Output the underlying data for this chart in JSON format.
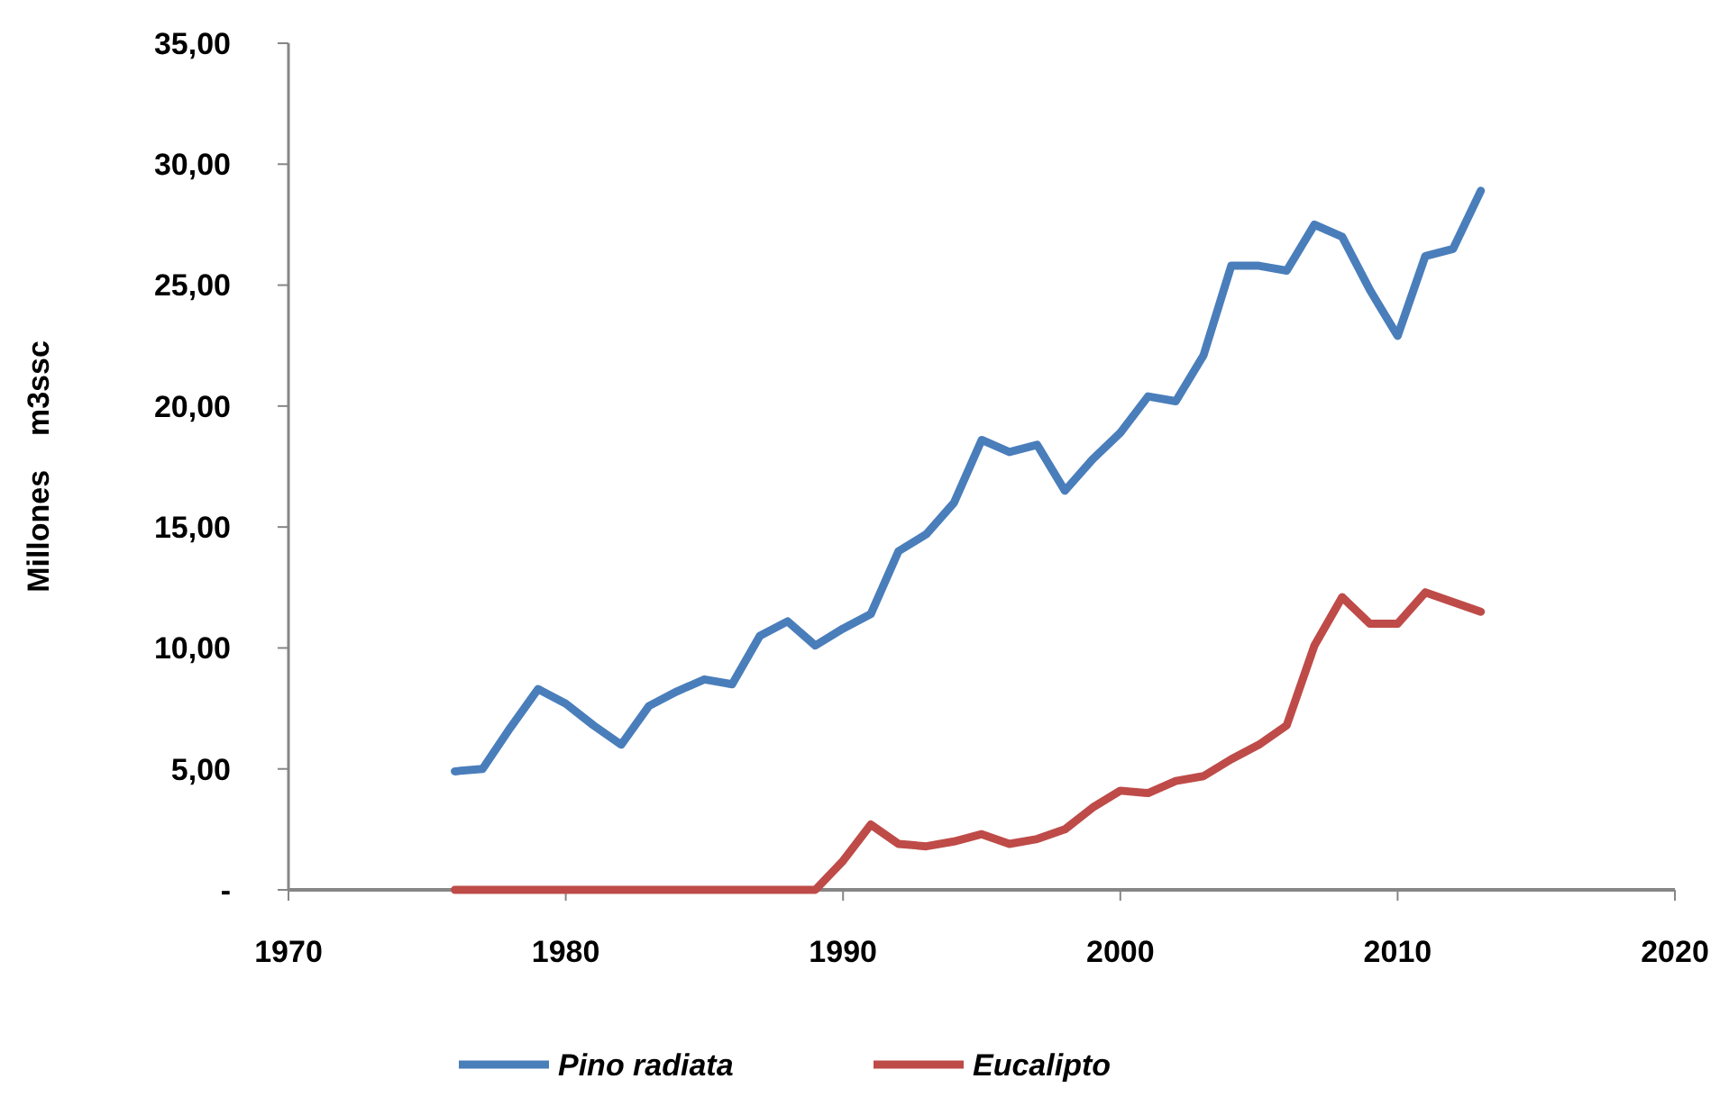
{
  "chart_data": {
    "type": "line",
    "ylabel": "Millones    m3ssc",
    "x": [
      1976,
      1977,
      1978,
      1979,
      1980,
      1981,
      1982,
      1983,
      1984,
      1985,
      1986,
      1987,
      1988,
      1989,
      1990,
      1991,
      1992,
      1993,
      1994,
      1995,
      1996,
      1997,
      1998,
      1999,
      2000,
      2001,
      2002,
      2003,
      2004,
      2005,
      2006,
      2007,
      2008,
      2009,
      2010,
      2011,
      2012,
      2013
    ],
    "series": [
      {
        "name": "Pino radiata",
        "color": "#4a7ebb",
        "values": [
          4.9,
          5.0,
          6.7,
          8.3,
          7.7,
          6.8,
          6.0,
          7.6,
          8.2,
          8.7,
          8.5,
          10.5,
          11.1,
          10.1,
          10.8,
          11.4,
          14.0,
          14.7,
          16.0,
          18.6,
          18.1,
          18.4,
          16.5,
          17.8,
          18.9,
          20.4,
          20.2,
          22.1,
          25.8,
          25.8,
          25.6,
          27.5,
          27.0,
          24.8,
          22.9,
          26.2,
          26.5,
          28.9
        ]
      },
      {
        "name": "Eucalipto",
        "color": "#be4b48",
        "values": [
          0,
          0,
          0,
          0,
          0,
          0,
          0,
          0,
          0,
          0,
          0,
          0,
          0,
          0,
          1.2,
          2.7,
          1.9,
          1.8,
          2.0,
          2.3,
          1.9,
          2.1,
          2.5,
          3.4,
          4.1,
          4.0,
          4.5,
          4.7,
          5.4,
          6.0,
          6.8,
          10.1,
          12.1,
          11.0,
          11.0,
          12.3,
          11.9,
          11.5
        ]
      }
    ],
    "xlim": [
      1970,
      2020
    ],
    "xticks": [
      1970,
      1980,
      1990,
      2000,
      2010,
      2020
    ],
    "ylim": [
      0,
      35
    ],
    "yticks": [
      {
        "value": 0,
        "label": "-"
      },
      {
        "value": 5,
        "label": "5,00"
      },
      {
        "value": 10,
        "label": "10,00"
      },
      {
        "value": 15,
        "label": "15,00"
      },
      {
        "value": 20,
        "label": "20,00"
      },
      {
        "value": 25,
        "label": "25,00"
      },
      {
        "value": 30,
        "label": "30,00"
      },
      {
        "value": 35,
        "label": "35,00"
      }
    ],
    "grid": false,
    "legend": "bottom",
    "marker": "none",
    "line_style": "solid"
  }
}
